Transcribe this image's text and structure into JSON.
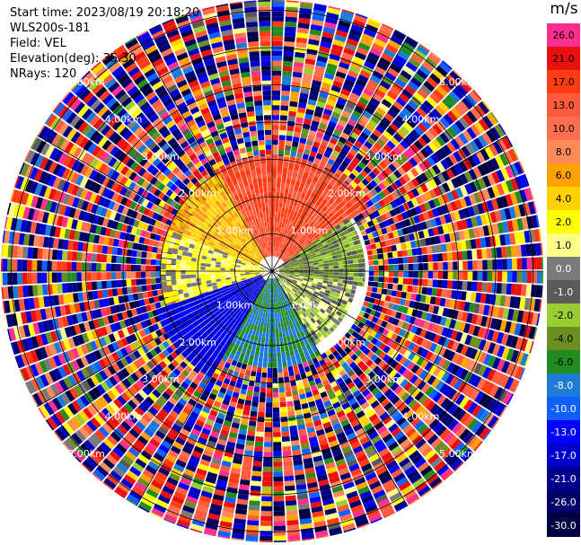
{
  "info": {
    "start_time": "Start time: 2023/08/19 20:18:20",
    "radar": "WLS200s-181",
    "field": "Field: VEL",
    "elevation": "Elevation(deg): 35.30",
    "nrays": "NRays: 120"
  },
  "colorbar": {
    "unit": "m/s",
    "levels": [
      {
        "label": "26.0",
        "color": "#ff2f8f"
      },
      {
        "label": "21.0",
        "color": "#e81010"
      },
      {
        "label": "17.0",
        "color": "#ff3c14"
      },
      {
        "label": "13.0",
        "color": "#ff5a3c"
      },
      {
        "label": "10.0",
        "color": "#ff6e4e"
      },
      {
        "label": "8.0",
        "color": "#ff8a5a"
      },
      {
        "label": "6.0",
        "color": "#ffa200"
      },
      {
        "label": "4.0",
        "color": "#ffd200"
      },
      {
        "label": "2.0",
        "color": "#ffff00"
      },
      {
        "label": "1.0",
        "color": "#ffff8a"
      },
      {
        "label": "0.0",
        "color": "#7a7a7a"
      },
      {
        "label": "-1.0",
        "color": "#5a5a5a"
      },
      {
        "label": "-2.0",
        "color": "#9acd32"
      },
      {
        "label": "-4.0",
        "color": "#6b8e23"
      },
      {
        "label": "-6.0",
        "color": "#228b22"
      },
      {
        "label": "-8.0",
        "color": "#1e7ad6"
      },
      {
        "label": "-10.0",
        "color": "#1060ff"
      },
      {
        "label": "-13.0",
        "color": "#0000ff"
      },
      {
        "label": "-17.0",
        "color": "#0000cd"
      },
      {
        "label": "-21.0",
        "color": "#00008b"
      },
      {
        "label": "-26.0",
        "color": "#000066"
      },
      {
        "label": "-30.0",
        "color": "#000040"
      }
    ]
  },
  "chart_data": {
    "type": "heatmap",
    "projection": "polar PPI",
    "field": "VEL",
    "units": "m/s",
    "elevation_deg": 35.3,
    "n_rays": 120,
    "range_ring_labels": [
      "1.00km",
      "2.00km",
      "3.00km",
      "4.00km",
      "5.00km"
    ],
    "grid": true,
    "sectors": [
      {
        "azimuth_from": -30,
        "azimuth_to": 55,
        "range_km": [
          0.4,
          3.1
        ],
        "value_ms": 17.0
      },
      {
        "azimuth_from": 290,
        "azimuth_to": 330,
        "range_km": [
          0.4,
          3.0
        ],
        "value_ms": 6.0
      },
      {
        "azimuth_from": 250,
        "azimuth_to": 290,
        "range_km": [
          0.2,
          3.0
        ],
        "value_ms": 2.0
      },
      {
        "azimuth_from": 55,
        "azimuth_to": 100,
        "range_km": [
          0.2,
          2.5
        ],
        "value_ms": -2.0
      },
      {
        "azimuth_from": 100,
        "azimuth_to": 150,
        "range_km": [
          0.2,
          2.3
        ],
        "value_ms": 0.0
      },
      {
        "azimuth_from": 150,
        "azimuth_to": 210,
        "range_km": [
          0.2,
          2.6
        ],
        "value_ms": -6.0
      },
      {
        "azimuth_from": 210,
        "azimuth_to": 250,
        "range_km": [
          0.3,
          3.3
        ],
        "value_ms": -13.0
      }
    ],
    "outer_noise_range_km": [
      2.6,
      6.0
    ],
    "outer_noise": "random values across full color range"
  }
}
